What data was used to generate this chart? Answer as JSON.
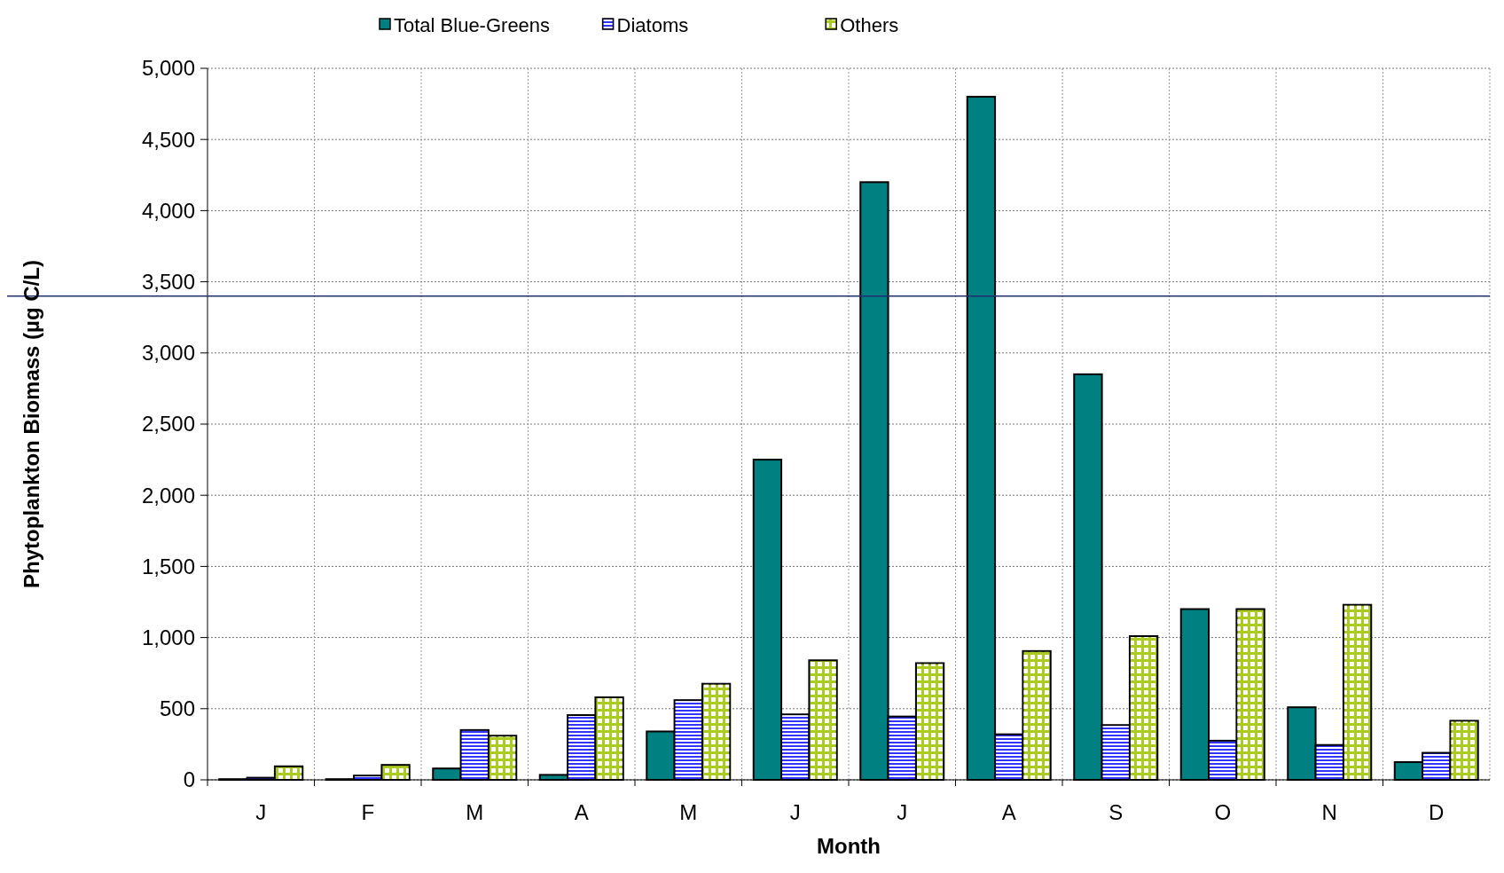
{
  "chart_data": {
    "type": "bar",
    "xlabel": "Month",
    "ylabel": "Phytoplankton Biomass (µg C/L)",
    "categories": [
      "J",
      "F",
      "M",
      "A",
      "M",
      "J",
      "J",
      "A",
      "S",
      "O",
      "N",
      "D"
    ],
    "series": [
      {
        "name": "Total Blue-Greens",
        "color": "#008080",
        "values": [
          5,
          5,
          80,
          35,
          340,
          2250,
          4200,
          4800,
          2850,
          1200,
          510,
          125
        ]
      },
      {
        "name": "Diatoms",
        "color": "#3333ff",
        "values": [
          15,
          30,
          350,
          455,
          560,
          460,
          445,
          320,
          385,
          275,
          245,
          190
        ]
      },
      {
        "name": "Others",
        "color": "#aacc22",
        "values": [
          95,
          105,
          310,
          580,
          675,
          840,
          820,
          905,
          1010,
          1200,
          1230,
          415
        ]
      }
    ],
    "ylim": [
      0,
      5000
    ],
    "yticks": [
      {
        "value": 0,
        "label": "0"
      },
      {
        "value": 500,
        "label": "500"
      },
      {
        "value": 1000,
        "label": "1,000"
      },
      {
        "value": 1500,
        "label": "1,500"
      },
      {
        "value": 2000,
        "label": "2,000"
      },
      {
        "value": 2500,
        "label": "2,500"
      },
      {
        "value": 3000,
        "label": "3,000"
      },
      {
        "value": 3500,
        "label": "3,500"
      },
      {
        "value": 4000,
        "label": "4,000"
      },
      {
        "value": 4500,
        "label": "4,500"
      },
      {
        "value": 5000,
        "label": "5,000"
      }
    ],
    "ref_lines": [
      {
        "axis": "y",
        "value": 3400,
        "color": "#1f2f6f"
      }
    ],
    "grid": true,
    "legend": "top"
  }
}
